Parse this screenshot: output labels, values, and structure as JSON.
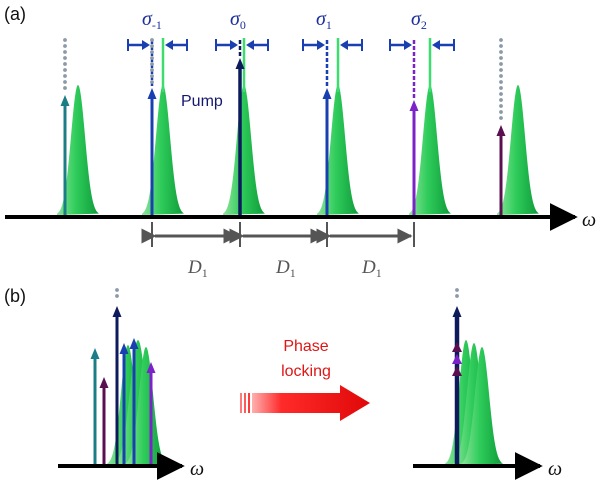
{
  "panel_a": {
    "label": "(a)",
    "axis_label": "ω",
    "pump_label": "Pump",
    "sigma_labels": [
      {
        "symbol": "σ",
        "sub": "-1"
      },
      {
        "symbol": "σ",
        "sub": "0"
      },
      {
        "symbol": "σ",
        "sub": "1"
      },
      {
        "symbol": "σ",
        "sub": "2"
      }
    ],
    "spacing_labels": [
      {
        "symbol": "D",
        "sub": "1"
      },
      {
        "symbol": "D",
        "sub": "1"
      },
      {
        "symbol": "D",
        "sub": "1"
      }
    ]
  },
  "panel_b": {
    "label": "(b)",
    "axis_label_left": "ω",
    "axis_label_right": "ω",
    "arrow_text_line1": "Phase",
    "arrow_text_line2": "locking"
  },
  "colors": {
    "resonance": "#2ecc5a",
    "pump": "#0d1a5c",
    "blue_line": "#1a3fb0",
    "teal_line": "#1d7d86",
    "purple_line": "#7b22c9",
    "dark_purple_line": "#5a1050",
    "phase_arrow": "#ee1111",
    "axis": "#000000"
  }
}
